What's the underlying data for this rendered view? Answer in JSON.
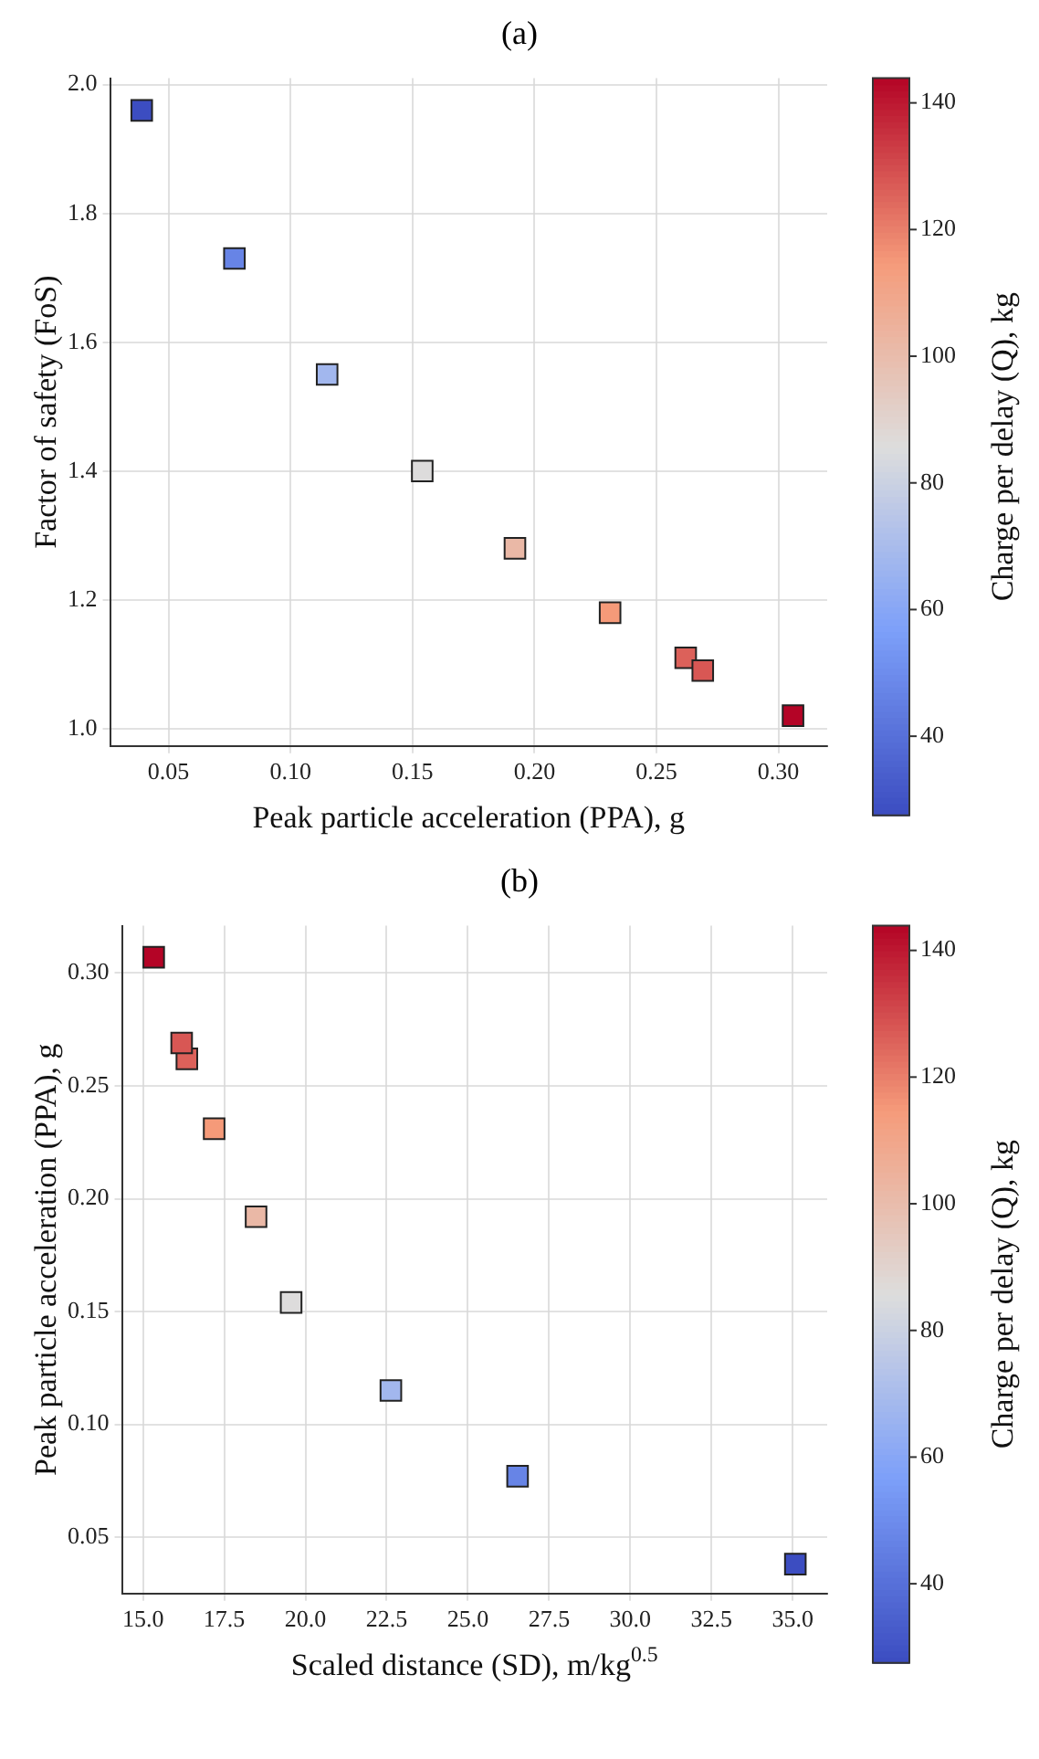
{
  "chart_data": [
    {
      "type": "scatter",
      "title": "(a)",
      "xlabel": "Peak particle acceleration (PPA), g",
      "ylabel": "Factor of safety (FoS)",
      "clabel": "Charge per delay (Q), kg",
      "x": [
        0.039,
        0.077,
        0.115,
        0.154,
        0.192,
        0.231,
        0.262,
        0.269,
        0.306
      ],
      "values": [
        1.96,
        1.73,
        1.55,
        1.4,
        1.28,
        1.18,
        1.11,
        1.09,
        1.02
      ],
      "cvalues": [
        28,
        47,
        68,
        86,
        102,
        115,
        126,
        128,
        144
      ],
      "xlim": [
        0.026,
        0.32
      ],
      "ylim": [
        0.973,
        2.01
      ],
      "xticks": [
        0.05,
        {
          "value": 0.1,
          "label": "0.10"
        },
        0.15,
        {
          "value": 0.2,
          "label": "0.20"
        },
        0.25,
        {
          "value": 0.3,
          "label": "0.30"
        }
      ],
      "yticks": [
        {
          "value": 1,
          "label": "1.0"
        },
        1.2,
        1.4,
        1.6,
        1.8,
        {
          "value": 2,
          "label": "2.0"
        }
      ],
      "clim": [
        27.5,
        143.9
      ],
      "cticks": [
        40,
        60,
        80,
        100,
        120,
        140
      ],
      "grid": true,
      "marker": "square"
    },
    {
      "type": "scatter",
      "title": "(b)",
      "xlabel": "Scaled distance (SD), m/kg$^{0.5}$",
      "ylabel": "Peak particle acceleration (PPA), g",
      "clabel": "Charge per delay (Q), kg",
      "x": [
        35.08,
        26.53,
        22.63,
        19.56,
        18.48,
        17.19,
        16.35,
        16.19,
        15.33
      ],
      "values": [
        0.038,
        0.077,
        0.115,
        0.154,
        0.192,
        0.231,
        0.262,
        0.269,
        0.307
      ],
      "cvalues": [
        28,
        47,
        68,
        86,
        102,
        115,
        126,
        128,
        144
      ],
      "xlim": [
        14.35,
        36.06
      ],
      "ylim": [
        0.025,
        0.321
      ],
      "xticks": [
        {
          "value": 15,
          "label": "15.0"
        },
        17.5,
        {
          "value": 20,
          "label": "20.0"
        },
        22.5,
        {
          "value": 25,
          "label": "25.0"
        },
        27.5,
        {
          "value": 30,
          "label": "30.0"
        },
        32.5,
        {
          "value": 35,
          "label": "35.0"
        }
      ],
      "yticks": [
        0.05,
        {
          "value": 0.1,
          "label": "0.10"
        },
        0.15,
        {
          "value": 0.2,
          "label": "0.20"
        },
        0.25,
        {
          "value": 0.3,
          "label": "0.30"
        }
      ],
      "clim": [
        27.5,
        143.9
      ],
      "cticks": [
        40,
        60,
        80,
        100,
        120,
        140
      ],
      "grid": true,
      "marker": "square"
    }
  ]
}
